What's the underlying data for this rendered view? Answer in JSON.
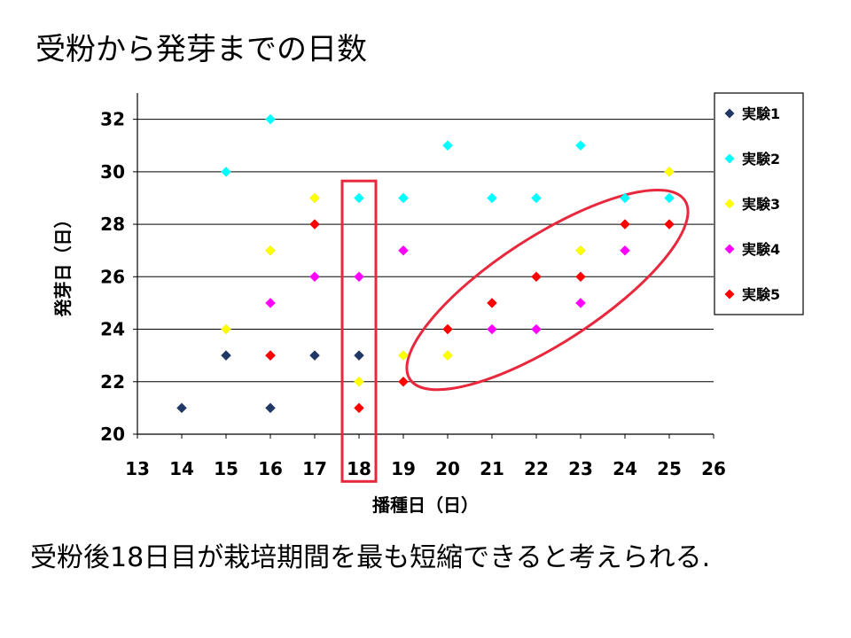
{
  "slide": {
    "title": "受粉から発芽までの日数",
    "caption": "受粉後18日目が栽培期間を最も短縮できると考えられる."
  },
  "chart_data": {
    "type": "scatter",
    "title": "",
    "xlabel": "播種日（日）",
    "ylabel": "発芽日（日）",
    "xlim": [
      13,
      26
    ],
    "ylim": [
      20,
      33
    ],
    "x_ticks": [
      13,
      14,
      15,
      16,
      17,
      18,
      19,
      20,
      21,
      22,
      23,
      24,
      25,
      26
    ],
    "y_ticks": [
      20,
      22,
      24,
      26,
      28,
      30,
      32
    ],
    "grid": "horizontal",
    "legend_position": "right",
    "series": [
      {
        "name": "実験1",
        "color": "#1f3864",
        "points": [
          [
            14,
            21
          ],
          [
            15,
            23
          ],
          [
            16,
            21
          ],
          [
            16,
            23
          ],
          [
            17,
            23
          ],
          [
            18,
            23
          ]
        ]
      },
      {
        "name": "実験2",
        "color": "#00ffff",
        "points": [
          [
            15,
            30
          ],
          [
            16,
            32
          ],
          [
            18,
            29
          ],
          [
            19,
            29
          ],
          [
            20,
            31
          ],
          [
            21,
            29
          ],
          [
            22,
            29
          ],
          [
            23,
            31
          ],
          [
            24,
            29
          ],
          [
            25,
            29
          ]
        ]
      },
      {
        "name": "実験3",
        "color": "#ffff00",
        "points": [
          [
            15,
            24
          ],
          [
            16,
            27
          ],
          [
            17,
            29
          ],
          [
            18,
            22
          ],
          [
            19,
            23
          ],
          [
            20,
            23
          ],
          [
            23,
            27
          ],
          [
            25,
            30
          ]
        ]
      },
      {
        "name": "実験4",
        "color": "#ff00ff",
        "points": [
          [
            16,
            25
          ],
          [
            17,
            26
          ],
          [
            18,
            26
          ],
          [
            19,
            27
          ],
          [
            21,
            24
          ],
          [
            22,
            24
          ],
          [
            23,
            25
          ],
          [
            24,
            27
          ]
        ]
      },
      {
        "name": "実験5",
        "color": "#ff0000",
        "points": [
          [
            16,
            23
          ],
          [
            17,
            28
          ],
          [
            18,
            21
          ],
          [
            19,
            22
          ],
          [
            20,
            24
          ],
          [
            21,
            25
          ],
          [
            22,
            26
          ],
          [
            23,
            26
          ],
          [
            24,
            28
          ],
          [
            25,
            28
          ]
        ]
      }
    ],
    "annotations": [
      {
        "type": "rectangle",
        "color": "#e8283c",
        "x_range": [
          17.62,
          18.38
        ],
        "y_range": [
          18.2,
          29.65
        ]
      },
      {
        "type": "ellipse",
        "color": "#e8283c",
        "center": [
          22.25,
          25.5
        ],
        "note": "highlighted upward trend"
      }
    ]
  }
}
